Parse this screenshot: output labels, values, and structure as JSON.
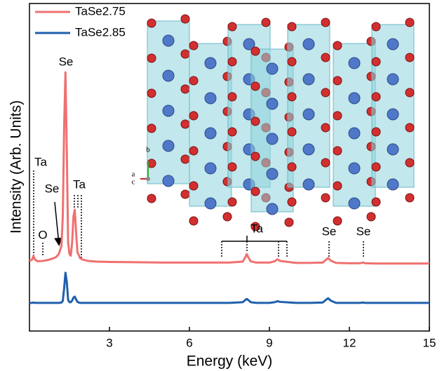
{
  "chart_data": {
    "type": "line",
    "xlabel": "Energy (keV)",
    "ylabel": "Intensity (Arb. Units)",
    "xlim": [
      0,
      15
    ],
    "xticks": [
      3,
      6,
      9,
      12,
      15
    ],
    "ylim": [
      0,
      100
    ],
    "legend": "top-left",
    "x": [
      0,
      0.1,
      0.15,
      0.2,
      0.3,
      0.5,
      0.7,
      0.9,
      1.0,
      1.1,
      1.2,
      1.25,
      1.3,
      1.35,
      1.4,
      1.45,
      1.5,
      1.55,
      1.6,
      1.65,
      1.7,
      1.75,
      1.8,
      1.85,
      1.9,
      2.0,
      2.2,
      2.5,
      3,
      4,
      5,
      6,
      7,
      7.5,
      8.0,
      8.1,
      8.15,
      8.2,
      8.3,
      8.5,
      9.0,
      9.2,
      9.3,
      9.4,
      9.6,
      10,
      10.5,
      11.0,
      11.1,
      11.2,
      11.3,
      11.5,
      12,
      12.4,
      12.5,
      12.6,
      13,
      14,
      15
    ],
    "series": [
      {
        "name": "TaSe2.75",
        "color": "#f07070",
        "values": [
          21.4,
          21.8,
          22.9,
          21.9,
          21.3,
          21.4,
          21.7,
          22.2,
          22.6,
          23.5,
          26,
          35,
          62,
          79,
          55,
          27,
          23.5,
          23,
          27,
          35,
          37,
          30,
          24,
          23.2,
          22.2,
          21.8,
          21.4,
          21.2,
          21.1,
          21.0,
          20.9,
          20.9,
          20.9,
          20.9,
          21.2,
          22.6,
          23.5,
          22.6,
          21.3,
          20.9,
          20.9,
          21.3,
          21.9,
          21.4,
          21.2,
          20.8,
          20.8,
          20.9,
          21.6,
          22.3,
          21.5,
          20.8,
          20.7,
          20.7,
          20.9,
          20.7,
          20.6,
          20.6,
          20.6
        ]
      },
      {
        "name": "TaSe2.85",
        "color": "#1f5fad",
        "values": [
          8.6,
          8.6,
          8.7,
          8.6,
          8.6,
          8.6,
          8.6,
          8.6,
          8.6,
          8.6,
          8.7,
          9.2,
          13,
          17.8,
          15,
          9.5,
          8.8,
          8.8,
          9.3,
          10.2,
          10.5,
          9.6,
          8.9,
          8.7,
          8.6,
          8.6,
          8.6,
          8.6,
          8.6,
          8.6,
          8.6,
          8.6,
          8.6,
          8.6,
          8.8,
          9.5,
          9.8,
          9.5,
          8.8,
          8.6,
          8.6,
          8.8,
          9.1,
          8.9,
          8.8,
          8.6,
          8.6,
          8.7,
          9.4,
          10.0,
          9.3,
          8.6,
          8.6,
          8.6,
          8.7,
          8.6,
          8.6,
          8.6,
          8.6
        ]
      }
    ],
    "annotations": [
      "Ta",
      "O",
      "Se",
      "Se",
      "Ta",
      "Ta",
      "Se",
      "Se"
    ],
    "inset_axes": [
      "b",
      "a",
      "c"
    ]
  }
}
